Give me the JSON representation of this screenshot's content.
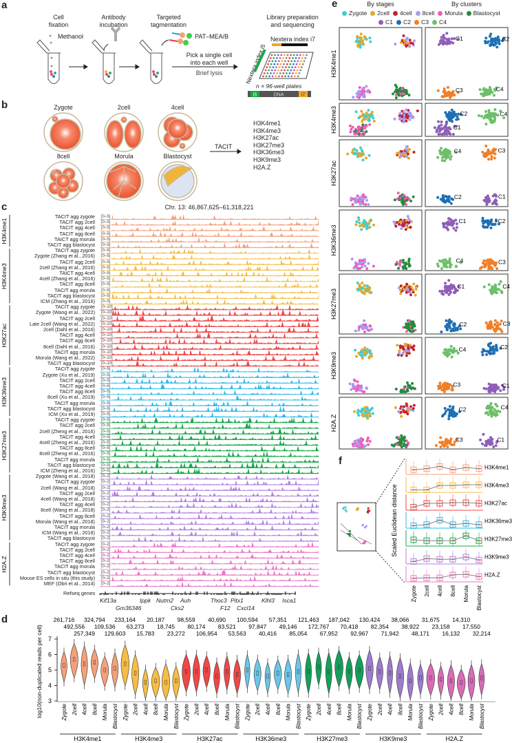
{
  "panel_labels": {
    "a": "a",
    "b": "b",
    "c": "c",
    "d": "d",
    "e": "e",
    "f": "f"
  },
  "panel_a": {
    "step1": "Cell\nfixation",
    "methanol": "Methanol",
    "step2": "Antibody\nincubation",
    "step3": "Targeted\ntagmentation",
    "pat": "PAT–MEA/B",
    "pick": "Pick a single cell\ninto each well",
    "lysis": "Brief lysis",
    "step4": "Library preparation\nand sequencing",
    "i7": "Nextera index i7",
    "i5": "Nextera index i5",
    "plates": "n × 96-well plates",
    "construct": [
      "i5",
      "DNA",
      "i7"
    ]
  },
  "panel_b": {
    "stages": [
      "Zygote",
      "2cell",
      "4cell",
      "8cell",
      "Morula",
      "Blastocyst"
    ],
    "arrow_label": "TACIT",
    "marks": [
      "H3K4me1",
      "H3K4me3",
      "H3K27ac",
      "H3K27me3",
      "H3K36me3",
      "H3K9me3",
      "H2A.Z"
    ]
  },
  "panel_c": {
    "title": "Chr. 13: 46,867,625–61,318,221",
    "refseq_label": "Refseq genes",
    "genes_row1": [
      "Kif13a",
      "Ippk",
      "Nutm2",
      "Auh",
      "Thoc3",
      "Pitx1",
      "Klhl3",
      "Isca1"
    ],
    "genes_row2": [
      "Gm36346",
      "Cks2",
      "F12",
      "Cxcl14"
    ],
    "groups": [
      {
        "mark": "H3K4me1",
        "color": "#f4a07a",
        "range": "[0–5]",
        "tracks": [
          "TACIT agg zygote",
          "TACIT agg 2cell",
          "TACIT agg 4cell",
          "TACIT agg 8cell",
          "TAICT agg morula",
          "TACIT agg blastocyst"
        ]
      },
      {
        "mark": "H3K4me3",
        "color": "#f5bd45",
        "range": "[0–5]",
        "tracks": [
          "TACIT agg zygote",
          "Zygote (Zhang et al., 2016)",
          "TACIT agg 2cell",
          "2cell (Zhang et al., 2016)",
          "TAICT agg 4cell",
          "4cell (Zhang et al., 2016)",
          "TACIT agg 8cell",
          "TACIT agg morula",
          "TACIT agg blastocyst",
          "ICM (Zhang et al., 2016)"
        ]
      },
      {
        "mark": "H3K27ac",
        "color": "#ee4848",
        "range": "[0–10]",
        "tracks": [
          "TACIT agg zygote",
          "Zygote (Wang et al., 2022)",
          "TACIT agg 2cell",
          "Late 2cell (Wang et al., 2022)",
          "2cell (Dahl et al., 2016)",
          "TACIT agg 4cell",
          "TACIT agg 8cell",
          "8cell (Dahl et al., 2016)",
          "TACIT agg morula",
          "Morula (Wang et al., 2022)",
          "TACIT agg blastocyst"
        ]
      },
      {
        "mark": "H3K36me3",
        "color": "#2bb8ea",
        "range": "[0–5]",
        "tracks": [
          "TACIT agg zygote",
          "Zygote (Xu et al., 2019)",
          "TACIT agg 2cell",
          "TACIT agg 4cell",
          "TACIT agg 8cell",
          "8cell (Xu et al., 2019)",
          "TACIT agg morula",
          "TACIT agg blastocyst",
          "ICM (Xu et al., 2019)"
        ]
      },
      {
        "mark": "H3K27me3",
        "color": "#17a84a",
        "range": "[0–5]",
        "tracks": [
          "TACIT agg zygote",
          "TACIT agg 2cell",
          "2cell (Zheng et al., 2016)",
          "TACIT agg 4cell",
          "4cell (Zheng et al., 2016)",
          "TACIT agg 8cell",
          "8cell (Zheng et al., 2016)",
          "TACIT agg morula",
          "TACIT agg blastocyst",
          "ICM (Zheng et al., 2016)"
        ]
      },
      {
        "mark": "H3K9me3",
        "color": "#b07fe0",
        "range": "[0–2]",
        "tracks": [
          "Zygote (Wang et al., 2018)",
          "TACIT agg zygote",
          "2cell (Wang et al., 2018)",
          "TACIT agg 2cell",
          "4cell (Wang et al., 2018)",
          "TACIT agg 4cell",
          "8cell (Wang et al., 2018)",
          "TACIT agg 8cell",
          "Morula (Wang et al., 2018)",
          "TACIT agg morula",
          "ICM (Wang et al., 2018)",
          "TACIT agg blastocyst"
        ]
      },
      {
        "mark": "H2A.Z",
        "color": "#e878c8",
        "range": "[0–2]",
        "tracks": [
          "TACIT agg zygote",
          "TACIT agg 2cell",
          "TACIT agg 4cell",
          "TACIT agg 8cell",
          "TACIT agg morula",
          "TACIT agg blastocyst",
          "Mouse ES cells in situ (this study)",
          "MEF (Obri et al., 2014)"
        ]
      }
    ]
  },
  "chart_data": [
    {
      "type": "violin",
      "panel": "d",
      "ylabel": "log10(non-duplicated reads per cell)",
      "ylim": [
        3,
        7
      ],
      "yticks": [
        "3",
        "4",
        "5",
        "6",
        "7"
      ],
      "stages": [
        "Zygote",
        "2cell",
        "4cell",
        "8cell",
        "Morula",
        "Blastocyst"
      ],
      "series": [
        {
          "name": "H3K4me1",
          "color": "#f4a07a",
          "median": [
            5.3,
            5.7,
            5.4,
            5.5,
            5.0,
            5.1
          ],
          "cells": [
            "261,716",
            "492,556",
            "257,349",
            "324,794",
            "109,536",
            "129,603"
          ]
        },
        {
          "name": "H3K4me3",
          "color": "#f5bd45",
          "median": [
            5.4,
            4.8,
            4.2,
            4.3,
            4.2,
            4.3
          ],
          "cells": [
            "233,164",
            "63,273",
            "15,783",
            "20,187",
            "18,745",
            "23,272"
          ]
        },
        {
          "name": "H3K27ac",
          "color": "#ee4848",
          "median": [
            4.9,
            4.9,
            5.0,
            4.6,
            4.9,
            4.7
          ],
          "cells": [
            "98,559",
            "80,174",
            "106,954",
            "40,690",
            "83,521",
            "53,563"
          ]
        },
        {
          "name": "H3K36me3",
          "color": "#6cc6e6",
          "median": [
            5.0,
            4.8,
            4.6,
            4.8,
            4.7,
            4.9
          ],
          "cells": [
            "100,594",
            "97,847",
            "40,416",
            "57,351",
            "49,146",
            "85,054"
          ]
        },
        {
          "name": "H3K27me3",
          "color": "#13a05a",
          "median": [
            4.9,
            5.2,
            4.9,
            5.2,
            4.9,
            5.0
          ],
          "cells": [
            "121,463",
            "172,767",
            "67,952",
            "187,042",
            "70,418",
            "92,967"
          ]
        },
        {
          "name": "H3K9me3",
          "color": "#9f7bd0",
          "median": [
            5.1,
            4.9,
            4.8,
            4.6,
            4.3,
            4.5
          ],
          "cells": [
            "130,424",
            "82,354",
            "71,942",
            "38,066",
            "38,922",
            "48,171"
          ]
        },
        {
          "name": "H2A.Z",
          "color": "#d96bb8",
          "median": [
            4.5,
            4.4,
            4.3,
            4.2,
            4.3,
            4.5
          ],
          "cells": [
            "31,675",
            "23,158",
            "16,132",
            "14,310",
            "17,550",
            "32,214"
          ]
        }
      ]
    },
    {
      "type": "scatter",
      "panel": "e",
      "col_titles": [
        "By stages",
        "By clusters"
      ],
      "legend_stages": [
        {
          "name": "Zygote",
          "color": "#3ccfd6"
        },
        {
          "name": "2cell",
          "color": "#e3a92b"
        },
        {
          "name": "4cell",
          "color": "#c4232f"
        },
        {
          "name": "8cell",
          "color": "#a99bf0"
        },
        {
          "name": "Morula",
          "color": "#f25cb8"
        },
        {
          "name": "Blastocyst",
          "color": "#268a3c"
        }
      ],
      "legend_clusters": [
        {
          "name": "C1",
          "color": "#8e5fb8"
        },
        {
          "name": "C2",
          "color": "#1f6fb4"
        },
        {
          "name": "C3",
          "color": "#f07f26"
        },
        {
          "name": "C4",
          "color": "#6dbf6a"
        }
      ],
      "rows": [
        {
          "mark": "H3K4me1",
          "clusters": [
            "C1",
            "C2",
            "C3",
            "C4"
          ]
        },
        {
          "mark": "H3K4me3",
          "clusters": [
            "C2",
            "C4",
            "C1"
          ]
        },
        {
          "mark": "H3K27ac",
          "clusters": [
            "C4",
            "C3",
            "C2",
            "C1"
          ]
        },
        {
          "mark": "H3K36me3",
          "clusters": [
            "C1",
            "C2",
            "C4",
            "C3"
          ]
        },
        {
          "mark": "H3K27me3",
          "clusters": [
            "C1",
            "C4",
            "C2",
            "C3"
          ]
        },
        {
          "mark": "H3K9me3",
          "clusters": [
            "C4",
            "C2",
            "C3",
            "C1"
          ]
        },
        {
          "mark": "H2A.Z",
          "clusters": [
            "C2",
            "C4",
            "C3",
            "C1"
          ]
        }
      ]
    },
    {
      "type": "box",
      "panel": "f",
      "ylabel": "Scaled Euclidean distance",
      "stages": [
        "Zygote",
        "2cell",
        "4cell",
        "8cell",
        "Morula",
        "Blastocyst"
      ],
      "series": [
        {
          "name": "H3K4me1",
          "color": "#f4a07a",
          "median": [
            0.15,
            0.2,
            0.3,
            0.15,
            0.25,
            0.2
          ]
        },
        {
          "name": "H3K4me3",
          "color": "#f5bd45",
          "median": [
            0.05,
            0.05,
            0.25,
            0.25,
            0.28,
            0.28
          ]
        },
        {
          "name": "H3K27ac",
          "color": "#ee4848",
          "median": [
            0.08,
            0.25,
            0.25,
            0.28,
            0.28,
            0.25
          ]
        },
        {
          "name": "H3K36me3",
          "color": "#2bb8ea",
          "median": [
            0.05,
            0.1,
            0.3,
            0.1,
            0.15,
            0.1
          ]
        },
        {
          "name": "H3K27me3",
          "color": "#17a84a",
          "median": [
            0.22,
            0.18,
            0.18,
            0.18,
            0.4,
            0.18
          ]
        },
        {
          "name": "H3K9me3",
          "color": "#b07fe0",
          "median": [
            0.05,
            0.18,
            0.15,
            0.15,
            0.25,
            0.12
          ]
        },
        {
          "name": "H2A.Z",
          "color": "#e878c8",
          "median": [
            0.1,
            0.12,
            0.12,
            0.25,
            0.28,
            0.18
          ]
        }
      ]
    }
  ]
}
